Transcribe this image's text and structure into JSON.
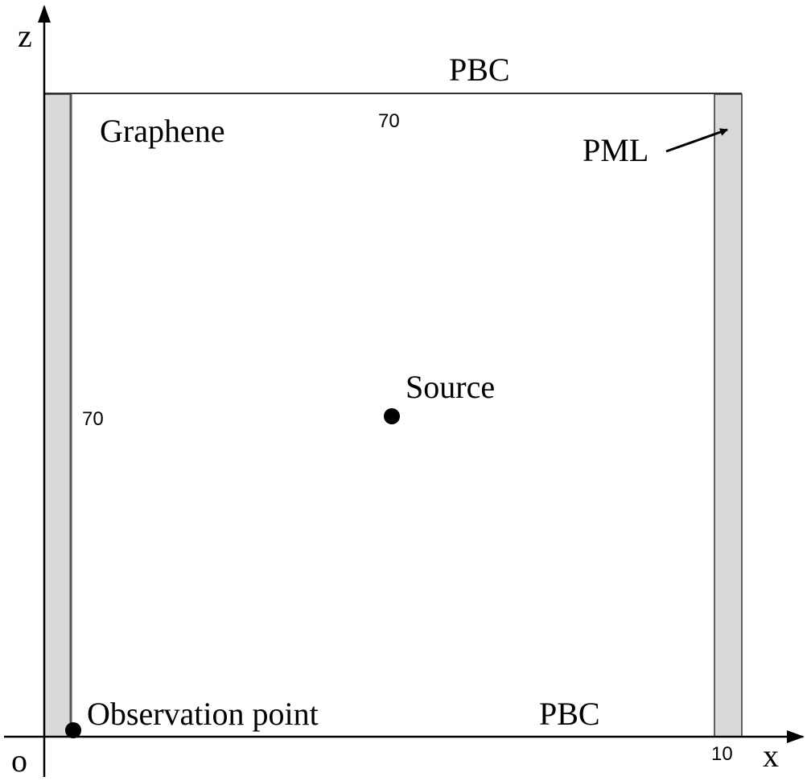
{
  "axes": {
    "z": "z",
    "x": "x",
    "origin": "o"
  },
  "boundaries": {
    "top": "PBC",
    "bottom": "PBC",
    "pml": "PML"
  },
  "labels": {
    "graphene": "Graphene",
    "source": "Source",
    "observation": "Observation point"
  },
  "dimensions": {
    "width": "70",
    "height": "70",
    "pml_width": "10"
  }
}
